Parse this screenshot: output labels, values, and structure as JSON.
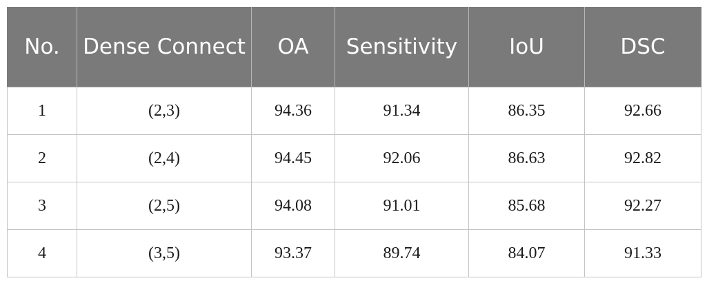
{
  "table": {
    "headers": [
      "No.",
      "Dense Connect",
      "OA",
      "Sensitivity",
      "IoU",
      "DSC"
    ],
    "rows": [
      [
        "1",
        "(2,3)",
        "94.36",
        "91.34",
        "86.35",
        "92.66"
      ],
      [
        "2",
        "(2,4)",
        "94.45",
        "92.06",
        "86.63",
        "92.82"
      ],
      [
        "3",
        "(2,5)",
        "94.08",
        "91.01",
        "85.68",
        "92.27"
      ],
      [
        "4",
        "(3,5)",
        "93.37",
        "89.74",
        "84.07",
        "91.33"
      ]
    ]
  },
  "colors": {
    "header_background": "#7a7a7a",
    "header_text": "#ffffff",
    "grid_line": "#c4c4c4",
    "body_text": "#1a1a1a"
  }
}
